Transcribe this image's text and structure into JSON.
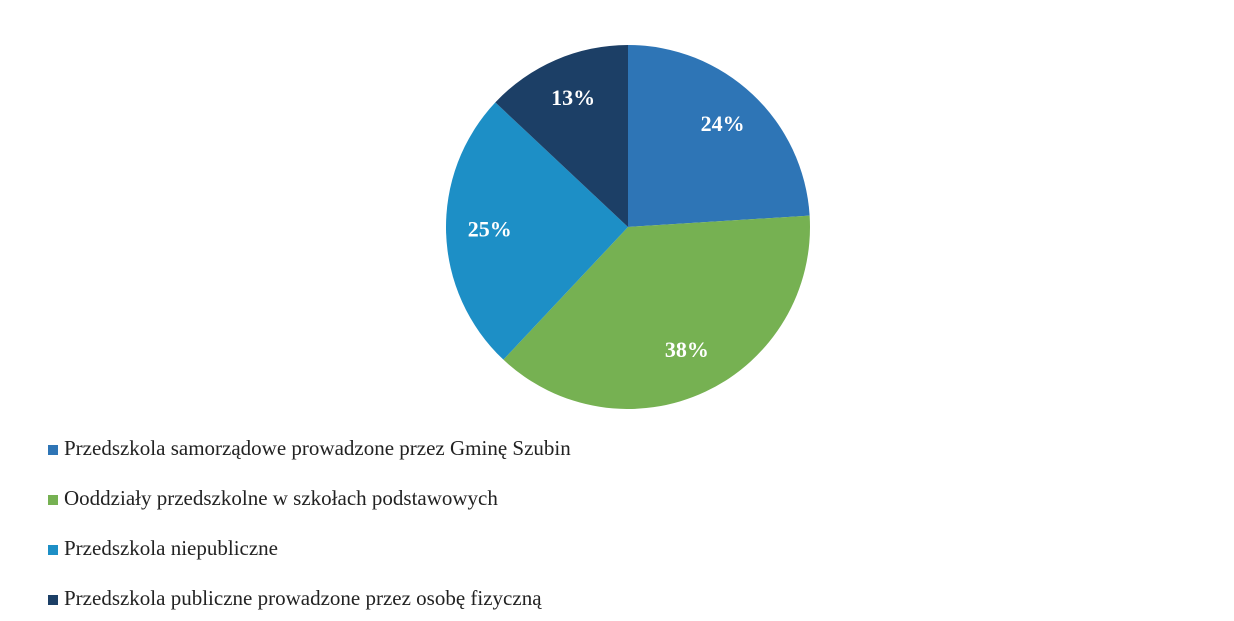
{
  "chart_data": {
    "type": "pie",
    "categories": [
      "Przedszkola samorządowe prowadzone przez Gminę Szubin",
      "Ooddziały przedszkolne w szkołach podstawowych",
      "Przedszkola niepubliczne",
      "Przedszkola publiczne prowadzone przez osobę fizyczną"
    ],
    "values": [
      24,
      38,
      25,
      13
    ],
    "value_labels": [
      "24%",
      "38%",
      "25%",
      "13%"
    ],
    "colors": [
      "#2e75b6",
      "#76b152",
      "#1d8fc6",
      "#1c3f66"
    ],
    "legend": "bottom-left"
  }
}
